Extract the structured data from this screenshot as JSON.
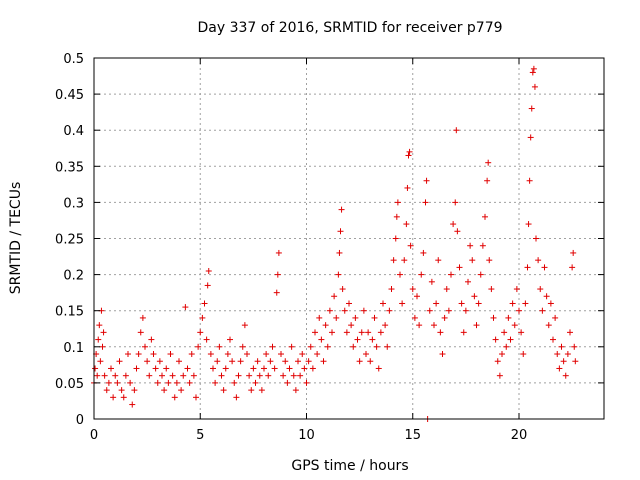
{
  "chart_data": {
    "type": "scatter",
    "title": "Day 337 of 2016, SRMTID for receiver p779",
    "xlabel": "GPS time / hours",
    "ylabel": "SRMTID / TECUs",
    "xlim": [
      0,
      24
    ],
    "ylim": [
      0,
      0.5
    ],
    "xticks": [
      0,
      5,
      10,
      15,
      20
    ],
    "xtick_labels": [
      "0",
      "5",
      "10",
      "15",
      "20"
    ],
    "yticks": [
      0,
      0.05,
      0.1,
      0.15,
      0.2,
      0.25,
      0.3,
      0.35,
      0.4,
      0.45,
      0.5
    ],
    "ytick_labels": [
      "0",
      "0.05",
      "0.1",
      "0.15",
      "0.2",
      "0.25",
      "0.3",
      "0.35",
      "0.4",
      "0.45",
      "0.5"
    ],
    "grid": true,
    "marker": "+",
    "color": "#e00000",
    "series": [
      {
        "name": "SRMTID",
        "points": [
          [
            0.0,
            0.05
          ],
          [
            0.05,
            0.07
          ],
          [
            0.1,
            0.09
          ],
          [
            0.15,
            0.06
          ],
          [
            0.2,
            0.11
          ],
          [
            0.25,
            0.13
          ],
          [
            0.3,
            0.08
          ],
          [
            0.35,
            0.15
          ],
          [
            0.4,
            0.1
          ],
          [
            0.45,
            0.12
          ],
          [
            0.5,
            0.06
          ],
          [
            0.6,
            0.04
          ],
          [
            0.7,
            0.05
          ],
          [
            0.8,
            0.07
          ],
          [
            0.9,
            0.03
          ],
          [
            1.0,
            0.06
          ],
          [
            1.1,
            0.05
          ],
          [
            1.2,
            0.08
          ],
          [
            1.3,
            0.04
          ],
          [
            1.4,
            0.03
          ],
          [
            1.5,
            0.06
          ],
          [
            1.6,
            0.09
          ],
          [
            1.7,
            0.05
          ],
          [
            1.8,
            0.02
          ],
          [
            1.9,
            0.04
          ],
          [
            2.0,
            0.07
          ],
          [
            2.1,
            0.09
          ],
          [
            2.2,
            0.12
          ],
          [
            2.3,
            0.14
          ],
          [
            2.4,
            0.1
          ],
          [
            2.5,
            0.08
          ],
          [
            2.6,
            0.06
          ],
          [
            2.7,
            0.11
          ],
          [
            2.8,
            0.09
          ],
          [
            2.9,
            0.07
          ],
          [
            3.0,
            0.05
          ],
          [
            3.1,
            0.08
          ],
          [
            3.2,
            0.06
          ],
          [
            3.3,
            0.04
          ],
          [
            3.4,
            0.07
          ],
          [
            3.5,
            0.05
          ],
          [
            3.6,
            0.09
          ],
          [
            3.7,
            0.06
          ],
          [
            3.8,
            0.03
          ],
          [
            3.9,
            0.05
          ],
          [
            4.0,
            0.08
          ],
          [
            4.1,
            0.04
          ],
          [
            4.2,
            0.06
          ],
          [
            4.3,
            0.155
          ],
          [
            4.4,
            0.07
          ],
          [
            4.5,
            0.05
          ],
          [
            4.6,
            0.09
          ],
          [
            4.7,
            0.06
          ],
          [
            4.8,
            0.03
          ],
          [
            4.9,
            0.1
          ],
          [
            5.0,
            0.12
          ],
          [
            5.1,
            0.14
          ],
          [
            5.2,
            0.16
          ],
          [
            5.3,
            0.11
          ],
          [
            5.35,
            0.185
          ],
          [
            5.4,
            0.205
          ],
          [
            5.5,
            0.09
          ],
          [
            5.6,
            0.07
          ],
          [
            5.7,
            0.05
          ],
          [
            5.8,
            0.08
          ],
          [
            5.9,
            0.1
          ],
          [
            6.0,
            0.06
          ],
          [
            6.1,
            0.04
          ],
          [
            6.2,
            0.07
          ],
          [
            6.3,
            0.09
          ],
          [
            6.4,
            0.11
          ],
          [
            6.5,
            0.08
          ],
          [
            6.6,
            0.05
          ],
          [
            6.7,
            0.03
          ],
          [
            6.8,
            0.06
          ],
          [
            6.9,
            0.08
          ],
          [
            7.0,
            0.1
          ],
          [
            7.1,
            0.13
          ],
          [
            7.2,
            0.09
          ],
          [
            7.3,
            0.06
          ],
          [
            7.4,
            0.04
          ],
          [
            7.5,
            0.07
          ],
          [
            7.6,
            0.05
          ],
          [
            7.7,
            0.08
          ],
          [
            7.8,
            0.06
          ],
          [
            7.9,
            0.04
          ],
          [
            8.0,
            0.07
          ],
          [
            8.1,
            0.09
          ],
          [
            8.2,
            0.06
          ],
          [
            8.3,
            0.08
          ],
          [
            8.4,
            0.1
          ],
          [
            8.5,
            0.07
          ],
          [
            8.6,
            0.175
          ],
          [
            8.65,
            0.2
          ],
          [
            8.7,
            0.23
          ],
          [
            8.8,
            0.09
          ],
          [
            8.9,
            0.06
          ],
          [
            9.0,
            0.08
          ],
          [
            9.1,
            0.05
          ],
          [
            9.2,
            0.07
          ],
          [
            9.3,
            0.1
          ],
          [
            9.4,
            0.06
          ],
          [
            9.5,
            0.04
          ],
          [
            9.6,
            0.08
          ],
          [
            9.7,
            0.06
          ],
          [
            9.8,
            0.09
          ],
          [
            9.9,
            0.07
          ],
          [
            10.0,
            0.05
          ],
          [
            10.1,
            0.08
          ],
          [
            10.2,
            0.1
          ],
          [
            10.3,
            0.07
          ],
          [
            10.4,
            0.12
          ],
          [
            10.5,
            0.09
          ],
          [
            10.6,
            0.14
          ],
          [
            10.7,
            0.11
          ],
          [
            10.8,
            0.08
          ],
          [
            10.9,
            0.13
          ],
          [
            11.0,
            0.1
          ],
          [
            11.1,
            0.15
          ],
          [
            11.2,
            0.12
          ],
          [
            11.3,
            0.17
          ],
          [
            11.4,
            0.14
          ],
          [
            11.5,
            0.2
          ],
          [
            11.55,
            0.23
          ],
          [
            11.6,
            0.26
          ],
          [
            11.65,
            0.29
          ],
          [
            11.7,
            0.18
          ],
          [
            11.8,
            0.15
          ],
          [
            11.9,
            0.12
          ],
          [
            12.0,
            0.16
          ],
          [
            12.1,
            0.13
          ],
          [
            12.2,
            0.1
          ],
          [
            12.3,
            0.14
          ],
          [
            12.4,
            0.11
          ],
          [
            12.5,
            0.08
          ],
          [
            12.6,
            0.12
          ],
          [
            12.7,
            0.15
          ],
          [
            12.8,
            0.09
          ],
          [
            12.9,
            0.12
          ],
          [
            13.0,
            0.08
          ],
          [
            13.1,
            0.11
          ],
          [
            13.2,
            0.14
          ],
          [
            13.3,
            0.1
          ],
          [
            13.4,
            0.07
          ],
          [
            13.5,
            0.12
          ],
          [
            13.6,
            0.16
          ],
          [
            13.7,
            0.13
          ],
          [
            13.8,
            0.1
          ],
          [
            13.9,
            0.15
          ],
          [
            14.0,
            0.18
          ],
          [
            14.1,
            0.22
          ],
          [
            14.2,
            0.25
          ],
          [
            14.25,
            0.28
          ],
          [
            14.3,
            0.3
          ],
          [
            14.4,
            0.2
          ],
          [
            14.5,
            0.16
          ],
          [
            14.6,
            0.22
          ],
          [
            14.7,
            0.27
          ],
          [
            14.75,
            0.32
          ],
          [
            14.8,
            0.365
          ],
          [
            14.85,
            0.37
          ],
          [
            14.9,
            0.24
          ],
          [
            15.0,
            0.18
          ],
          [
            15.1,
            0.14
          ],
          [
            15.2,
            0.17
          ],
          [
            15.3,
            0.13
          ],
          [
            15.4,
            0.2
          ],
          [
            15.5,
            0.23
          ],
          [
            15.6,
            0.3
          ],
          [
            15.65,
            0.33
          ],
          [
            15.7,
            0.0
          ],
          [
            15.8,
            0.15
          ],
          [
            15.9,
            0.19
          ],
          [
            16.0,
            0.13
          ],
          [
            16.1,
            0.16
          ],
          [
            16.2,
            0.22
          ],
          [
            16.3,
            0.12
          ],
          [
            16.4,
            0.09
          ],
          [
            16.5,
            0.14
          ],
          [
            16.6,
            0.18
          ],
          [
            16.7,
            0.15
          ],
          [
            16.8,
            0.2
          ],
          [
            16.9,
            0.27
          ],
          [
            17.0,
            0.3
          ],
          [
            17.05,
            0.4
          ],
          [
            17.1,
            0.26
          ],
          [
            17.2,
            0.21
          ],
          [
            17.3,
            0.16
          ],
          [
            17.4,
            0.12
          ],
          [
            17.5,
            0.15
          ],
          [
            17.6,
            0.19
          ],
          [
            17.7,
            0.24
          ],
          [
            17.8,
            0.22
          ],
          [
            17.9,
            0.17
          ],
          [
            18.0,
            0.13
          ],
          [
            18.1,
            0.16
          ],
          [
            18.2,
            0.2
          ],
          [
            18.3,
            0.24
          ],
          [
            18.4,
            0.28
          ],
          [
            18.5,
            0.33
          ],
          [
            18.55,
            0.355
          ],
          [
            18.6,
            0.22
          ],
          [
            18.7,
            0.18
          ],
          [
            18.8,
            0.14
          ],
          [
            18.9,
            0.11
          ],
          [
            19.0,
            0.08
          ],
          [
            19.1,
            0.06
          ],
          [
            19.2,
            0.09
          ],
          [
            19.3,
            0.12
          ],
          [
            19.4,
            0.1
          ],
          [
            19.5,
            0.14
          ],
          [
            19.6,
            0.11
          ],
          [
            19.7,
            0.16
          ],
          [
            19.8,
            0.13
          ],
          [
            19.9,
            0.18
          ],
          [
            20.0,
            0.15
          ],
          [
            20.1,
            0.12
          ],
          [
            20.2,
            0.09
          ],
          [
            20.3,
            0.16
          ],
          [
            20.4,
            0.21
          ],
          [
            20.45,
            0.27
          ],
          [
            20.5,
            0.33
          ],
          [
            20.55,
            0.39
          ],
          [
            20.6,
            0.43
          ],
          [
            20.65,
            0.48
          ],
          [
            20.7,
            0.485
          ],
          [
            20.75,
            0.46
          ],
          [
            20.8,
            0.25
          ],
          [
            20.9,
            0.22
          ],
          [
            21.0,
            0.18
          ],
          [
            21.1,
            0.15
          ],
          [
            21.2,
            0.21
          ],
          [
            21.3,
            0.17
          ],
          [
            21.4,
            0.13
          ],
          [
            21.5,
            0.16
          ],
          [
            21.6,
            0.11
          ],
          [
            21.7,
            0.14
          ],
          [
            21.8,
            0.09
          ],
          [
            21.9,
            0.07
          ],
          [
            22.0,
            0.1
          ],
          [
            22.1,
            0.08
          ],
          [
            22.2,
            0.06
          ],
          [
            22.3,
            0.09
          ],
          [
            22.4,
            0.12
          ],
          [
            22.5,
            0.21
          ],
          [
            22.55,
            0.23
          ],
          [
            22.6,
            0.1
          ],
          [
            22.65,
            0.08
          ]
        ]
      }
    ]
  }
}
